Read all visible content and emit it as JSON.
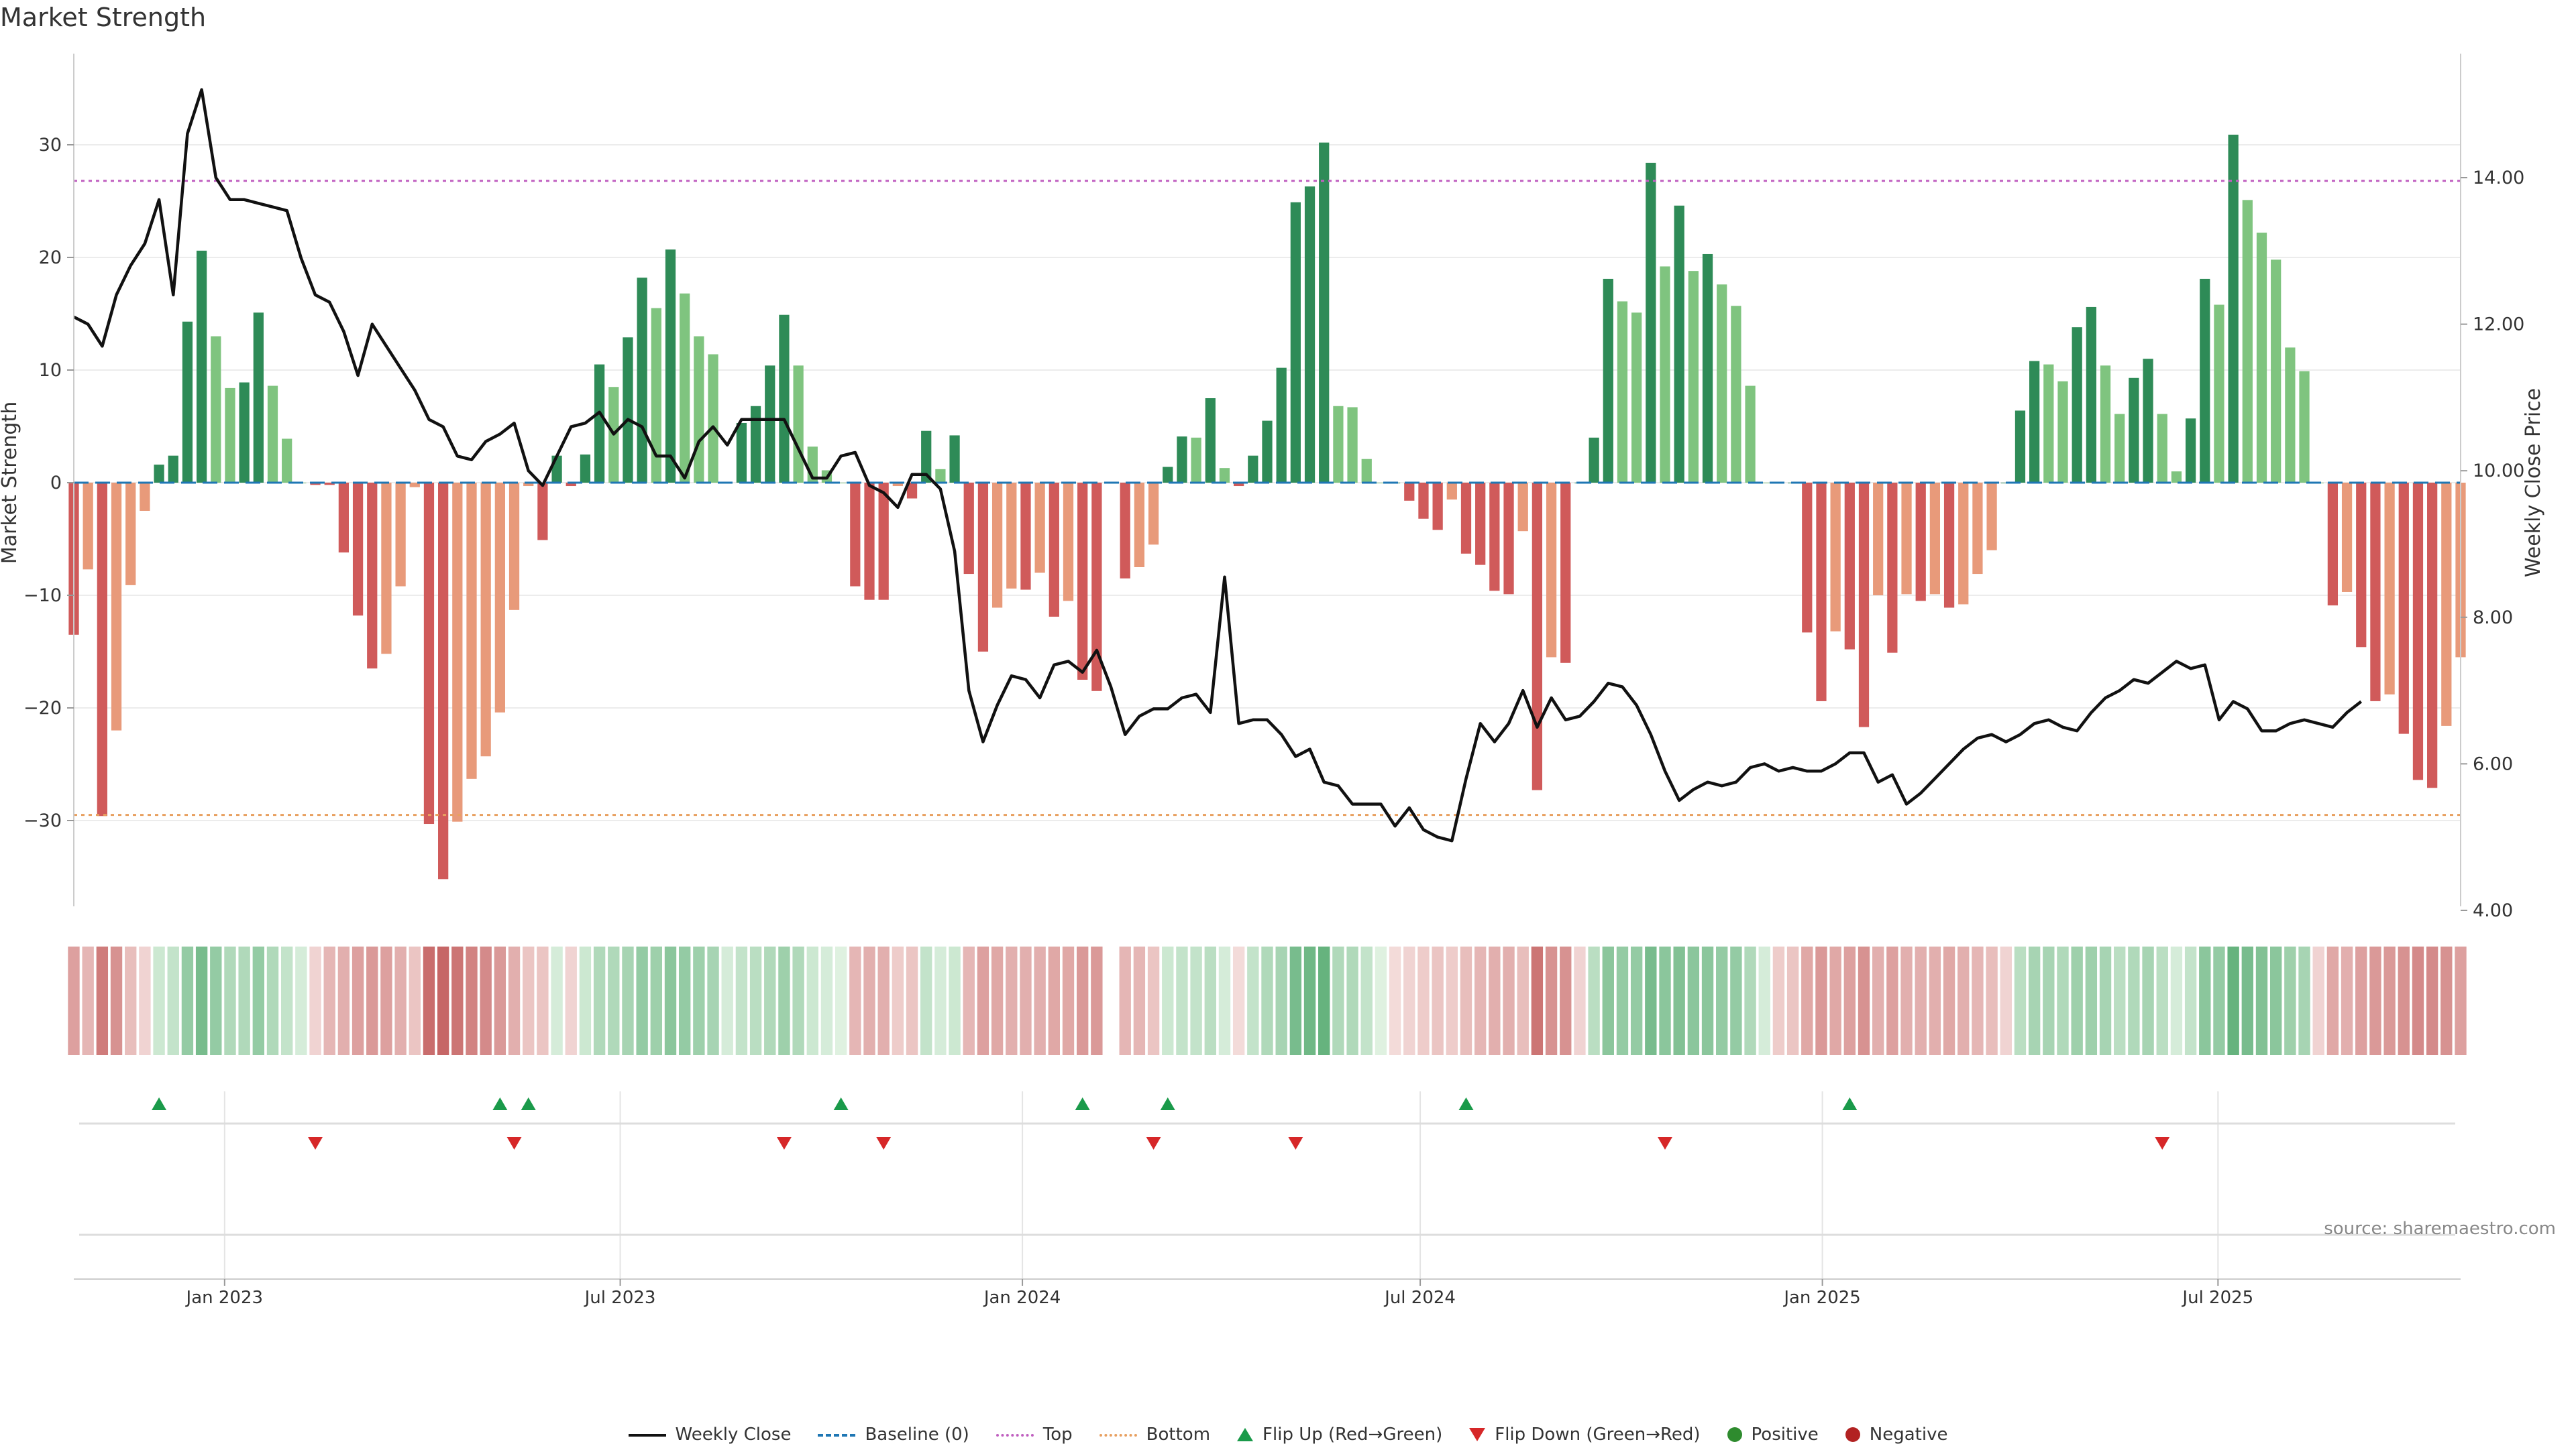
{
  "title": "Market Strength",
  "source": "source: sharemaestro.com",
  "colors": {
    "strong_pos": "#2e8b57",
    "weak_pos": "#7fc47f",
    "strong_neg": "#d05a5a",
    "weak_neg": "#e89a7a",
    "line": "#111111",
    "top": "#c060c0",
    "bottom": "#e8a060",
    "baseline": "#1f77b4",
    "flip_up": "#1a9a4a",
    "flip_down": "#d62728"
  },
  "legend": [
    {
      "label": "Weekly Close",
      "icon": "line-solid-icon"
    },
    {
      "label": "Baseline (0)",
      "icon": "line-dashed-icon"
    },
    {
      "label": "Top",
      "icon": "line-dotted-icon"
    },
    {
      "label": "Bottom",
      "icon": "line-dotted-icon"
    },
    {
      "label": "Flip Up (Red→Green)",
      "icon": "triangle-up-icon"
    },
    {
      "label": "Flip Down (Green→Red)",
      "icon": "triangle-down-icon"
    },
    {
      "label": "Positive",
      "icon": "dot-green-icon"
    },
    {
      "label": "Negative",
      "icon": "dot-red-icon"
    }
  ],
  "chart_data": {
    "type": "bar",
    "title": "Market Strength",
    "ylabel": "Market Strength",
    "y2label": "Weekly Close Price",
    "ylim": [
      -38,
      38
    ],
    "y2lim": [
      4,
      15.5
    ],
    "yticks": [
      -30,
      -20,
      -10,
      0,
      10,
      20,
      30
    ],
    "yticklabels": [
      "−30",
      "−20",
      "−10",
      "0",
      "10",
      "20",
      "30"
    ],
    "y2ticks": [
      4,
      6,
      8,
      10,
      12,
      14
    ],
    "y2ticklabels": [
      "4.00",
      "6.00",
      "8.00",
      "10.00",
      "12.00",
      "14.00"
    ],
    "x_start": "2022-10-24",
    "x_end": "2025-10-20",
    "xticks": [
      "2023-01-01",
      "2023-07-01",
      "2024-01-01",
      "2024-07-01",
      "2025-01-01",
      "2025-07-01"
    ],
    "xticklabels": [
      "Jan 2023",
      "Jul 2023",
      "Jan 2024",
      "Jul 2024",
      "Jan 2025",
      "Jul 2025"
    ],
    "top": 26.8,
    "bottom": -29.5,
    "grid": true,
    "legend_placement": "bottom",
    "strength": [
      -13.5,
      -7.7,
      -29.6,
      -22,
      -9.1,
      -2.5,
      1.6,
      2.4,
      14.3,
      20.6,
      13,
      8.4,
      8.9,
      15.1,
      8.6,
      3.9,
      0,
      -0.2,
      -0.2,
      -6.2,
      -11.8,
      -16.5,
      -15.2,
      -9.2,
      -0.4,
      -30.3,
      -35.2,
      -30.1,
      -26.3,
      -24.3,
      -20.4,
      -11.3,
      -0.3,
      -5.1,
      2.4,
      -0.3,
      2.5,
      10.5,
      8.5,
      12.9,
      18.2,
      15.5,
      20.7,
      16.8,
      13,
      11.4,
      0,
      5.3,
      6.8,
      10.4,
      14.9,
      10.4,
      3.2,
      1.1,
      0,
      -9.2,
      -10.4,
      -10.4,
      -0.3,
      -1.4,
      4.6,
      1.2,
      4.2,
      -8.1,
      -15,
      -11.1,
      -9.4,
      -9.5,
      -8,
      -11.9,
      -10.5,
      -17.5,
      -18.5,
      0,
      -8.5,
      -7.5,
      -5.5,
      1.4,
      4.1,
      4,
      7.5,
      1.3,
      -0.3,
      2.4,
      5.5,
      10.2,
      24.9,
      26.3,
      30.2,
      6.8,
      6.7,
      2.1,
      0,
      0,
      -1.6,
      -3.2,
      -4.2,
      -1.5,
      -6.3,
      -7.3,
      -9.6,
      -9.9,
      -4.3,
      -27.3,
      -15.5,
      -16,
      0,
      4,
      18.1,
      16.1,
      15.1,
      28.4,
      19.2,
      24.6,
      18.8,
      20.3,
      17.6,
      15.7,
      8.6,
      0,
      0,
      0,
      -13.3,
      -19.4,
      -13.2,
      -14.8,
      -21.7,
      -10,
      -15.1,
      -9.9,
      -10.5,
      -9.9,
      -11.1,
      -10.8,
      -8.1,
      -6,
      0,
      6.4,
      10.8,
      10.5,
      9,
      13.8,
      15.6,
      10.4,
      6.1,
      9.3,
      11,
      6.1,
      1,
      5.7,
      18.1,
      15.8,
      30.9,
      25.1,
      22.2,
      19.8,
      12,
      9.9,
      0,
      -10.9,
      -9.7,
      -14.6,
      -19.4,
      -18.8,
      -22.3,
      -26.4,
      -27.1,
      -21.6,
      -15.5
    ],
    "close": [
      12.1,
      12.0,
      11.7,
      12.4,
      12.8,
      13.1,
      13.7,
      12.4,
      14.6,
      15.2,
      14.0,
      13.7,
      13.7,
      13.65,
      13.6,
      13.55,
      12.9,
      12.4,
      12.3,
      11.9,
      11.3,
      12.0,
      11.7,
      11.4,
      11.1,
      10.7,
      10.6,
      10.2,
      10.15,
      10.4,
      10.5,
      10.65,
      10.0,
      9.8,
      10.2,
      10.6,
      10.65,
      10.8,
      10.5,
      10.7,
      10.6,
      10.2,
      10.2,
      9.9,
      10.4,
      10.6,
      10.35,
      10.7,
      10.7,
      10.7,
      10.7,
      10.3,
      9.9,
      9.9,
      10.2,
      10.25,
      9.8,
      9.7,
      9.5,
      9.95,
      9.95,
      9.75,
      8.9,
      7.0,
      6.3,
      6.8,
      7.2,
      7.15,
      6.9,
      7.35,
      7.4,
      7.25,
      7.55,
      7.05,
      6.4,
      6.65,
      6.75,
      6.75,
      6.9,
      6.95,
      6.7,
      8.55,
      6.55,
      6.6,
      6.6,
      6.4,
      6.1,
      6.2,
      5.75,
      5.7,
      5.45,
      5.45,
      5.45,
      5.15,
      5.4,
      5.1,
      5.0,
      4.95,
      5.8,
      6.55,
      6.3,
      6.55,
      7.0,
      6.5,
      6.9,
      6.6,
      6.65,
      6.85,
      7.1,
      7.05,
      6.8,
      6.4,
      5.9,
      5.5,
      5.65,
      5.75,
      5.7,
      5.75,
      5.95,
      6.0,
      5.9,
      5.95,
      5.9,
      5.9,
      6.0,
      6.15,
      6.15,
      5.75,
      5.85,
      5.45,
      5.6,
      5.8,
      6.0,
      6.2,
      6.35,
      6.4,
      6.3,
      6.4,
      6.55,
      6.6,
      6.5,
      6.45,
      6.7,
      6.9,
      7.0,
      7.15,
      7.1,
      7.25,
      7.4,
      7.3,
      7.35,
      6.6,
      6.85,
      6.75,
      6.45,
      6.45,
      6.55,
      6.6,
      6.55,
      6.5,
      6.7,
      6.85
    ],
    "heat": [
      -0.45,
      -0.3,
      -0.7,
      -0.55,
      -0.25,
      -0.1,
      0.15,
      0.2,
      0.45,
      0.6,
      0.45,
      0.3,
      0.3,
      0.45,
      0.3,
      0.2,
      0.1,
      -0.1,
      -0.3,
      -0.35,
      -0.45,
      -0.5,
      -0.45,
      -0.35,
      -0.2,
      -0.8,
      -0.85,
      -0.75,
      -0.65,
      -0.6,
      -0.5,
      -0.35,
      -0.2,
      -0.2,
      0.1,
      -0.1,
      0.15,
      0.3,
      0.3,
      0.35,
      0.45,
      0.4,
      0.5,
      0.45,
      0.4,
      0.35,
      0.1,
      0.2,
      0.25,
      0.3,
      0.4,
      0.3,
      0.15,
      0.1,
      0.05,
      -0.3,
      -0.35,
      -0.35,
      -0.15,
      -0.2,
      0.2,
      0.1,
      0.15,
      -0.3,
      -0.45,
      -0.4,
      -0.35,
      -0.35,
      -0.35,
      -0.4,
      -0.4,
      -0.5,
      -0.5,
      null,
      -0.3,
      -0.3,
      -0.2,
      0.15,
      0.2,
      0.2,
      0.25,
      0.1,
      -0.05,
      0.2,
      0.3,
      0.35,
      0.6,
      0.65,
      0.7,
      0.3,
      0.3,
      0.2,
      0.05,
      -0.05,
      -0.1,
      -0.15,
      -0.2,
      -0.15,
      -0.25,
      -0.3,
      -0.35,
      -0.35,
      -0.25,
      -0.75,
      -0.55,
      -0.55,
      -0.1,
      0.25,
      0.5,
      0.45,
      0.45,
      0.6,
      0.5,
      0.55,
      0.5,
      0.5,
      0.45,
      0.45,
      0.3,
      0.1,
      -0.15,
      -0.2,
      -0.4,
      -0.5,
      -0.4,
      -0.45,
      -0.55,
      -0.35,
      -0.45,
      -0.35,
      -0.35,
      -0.35,
      -0.4,
      -0.35,
      -0.3,
      -0.25,
      -0.1,
      0.25,
      0.35,
      0.35,
      0.3,
      0.4,
      0.4,
      0.35,
      0.25,
      0.3,
      0.35,
      0.25,
      0.1,
      0.2,
      0.5,
      0.45,
      0.7,
      0.6,
      0.55,
      0.5,
      0.4,
      0.35,
      -0.1,
      -0.4,
      -0.35,
      -0.45,
      -0.5,
      -0.5,
      -0.55,
      -0.6,
      -0.6,
      -0.55,
      -0.45
    ],
    "flip_up": [
      6,
      30,
      32,
      54,
      71,
      77,
      98,
      125
    ],
    "flip_down": [
      17,
      31,
      50,
      57,
      76,
      86,
      112,
      147
    ]
  }
}
